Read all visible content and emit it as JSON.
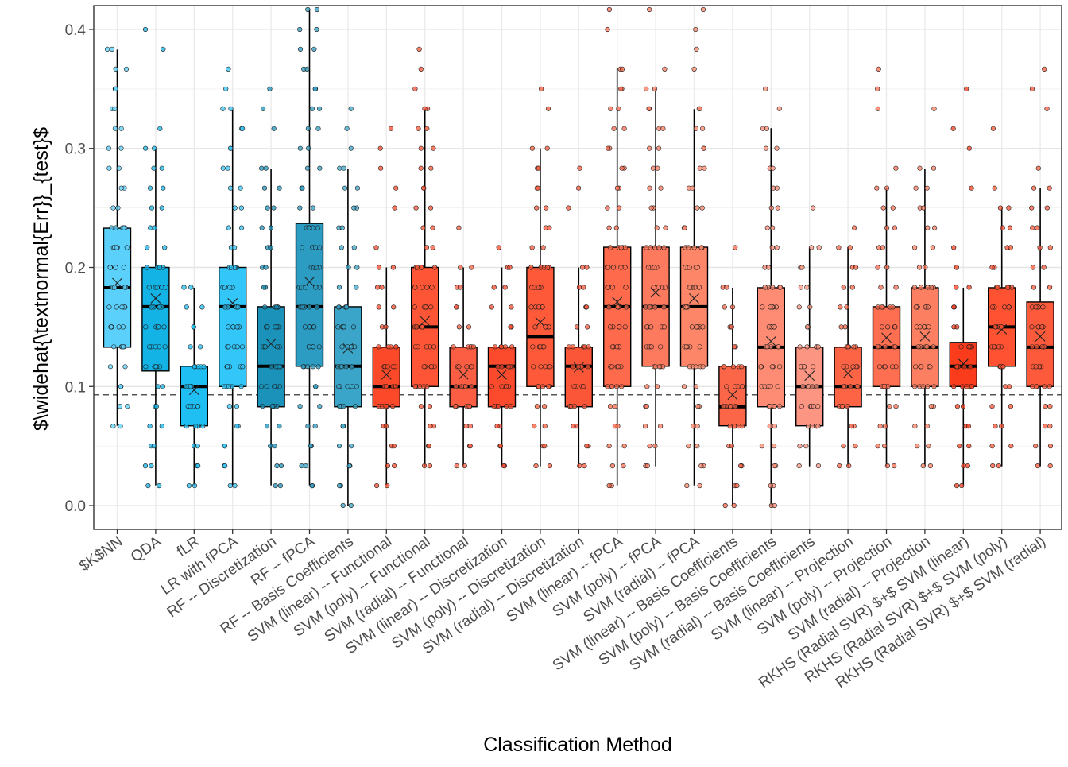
{
  "chart_data": {
    "type": "box",
    "title": "",
    "xlabel": "Classification Method",
    "ylabel": "$\\widehat{\\textnormal{Err}}_{test}$",
    "ylim": [
      -0.02,
      0.42
    ],
    "yticks": [
      "0.0",
      "0.1",
      "0.2",
      "0.3",
      "0.4"
    ],
    "grid": true,
    "reference_line": 0.093,
    "legend": "none",
    "categories": [
      "$K$NN",
      "QDA",
      "fLR",
      "LR with fPCA",
      "RF -- Discretization",
      "RF -- fPCA",
      "RF -- Basis Coefficients",
      "SVM (linear) -- Functional",
      "SVM (poly) -- Functional",
      "SVM (radial) -- Functional",
      "SVM (linear) -- Discretization",
      "SVM (poly) -- Discretization",
      "SVM (radial) -- Discretization",
      "SVM (linear) -- fPCA",
      "SVM (poly) -- fPCA",
      "SVM (radial) -- fPCA",
      "SVM (linear) -- Basis Coefficients",
      "SVM (poly) -- Basis Coefficients",
      "SVM (radial) -- Basis Coefficients",
      "SVM (linear) -- Projection",
      "SVM (poly) -- Projection",
      "SVM (radial) -- Projection",
      "RKHS (Radial SVR) $+$ SVM (linear)",
      "RKHS (Radial SVR) $+$ SVM (poly)",
      "RKHS (Radial SVR) $+$ SVM (radial)"
    ],
    "boxes": [
      {
        "min": 0.067,
        "q1": 0.133,
        "median": 0.183,
        "q3": 0.233,
        "max": 0.383,
        "mean": 0.187,
        "fill": "#5bd0fa",
        "pmin": 0.067,
        "pmax": 0.383
      },
      {
        "min": 0.017,
        "q1": 0.113,
        "median": 0.167,
        "q3": 0.2,
        "max": 0.3,
        "mean": 0.174,
        "fill": "#14b3e6",
        "pmin": 0.017,
        "pmax": 0.4
      },
      {
        "min": 0.017,
        "q1": 0.067,
        "median": 0.1,
        "q3": 0.117,
        "max": 0.183,
        "mean": 0.097,
        "fill": "#1fbff3",
        "pmin": 0.017,
        "pmax": 0.183
      },
      {
        "min": 0.017,
        "q1": 0.1,
        "median": 0.167,
        "q3": 0.2,
        "max": 0.333,
        "mean": 0.17,
        "fill": "#33c6f8",
        "pmin": 0.017,
        "pmax": 0.367
      },
      {
        "min": 0.017,
        "q1": 0.083,
        "median": 0.117,
        "q3": 0.167,
        "max": 0.283,
        "mean": 0.136,
        "fill": "#1a92b9",
        "pmin": 0.017,
        "pmax": 0.35
      },
      {
        "min": 0.017,
        "q1": 0.117,
        "median": 0.167,
        "q3": 0.237,
        "max": 0.417,
        "mean": 0.188,
        "fill": "#2c9cc2",
        "pmin": 0.017,
        "pmax": 0.417
      },
      {
        "min": 0.0,
        "q1": 0.083,
        "median": 0.117,
        "q3": 0.167,
        "max": 0.283,
        "mean": 0.132,
        "fill": "#3aa5c8",
        "pmin": 0.0,
        "pmax": 0.333
      },
      {
        "min": 0.017,
        "q1": 0.083,
        "median": 0.1,
        "q3": 0.133,
        "max": 0.2,
        "mean": 0.11,
        "fill": "#fb492a",
        "pmin": 0.017,
        "pmax": 0.317
      },
      {
        "min": 0.033,
        "q1": 0.1,
        "median": 0.15,
        "q3": 0.2,
        "max": 0.333,
        "mean": 0.155,
        "fill": "#fe5536",
        "pmin": 0.033,
        "pmax": 0.383
      },
      {
        "min": 0.033,
        "q1": 0.083,
        "median": 0.1,
        "q3": 0.133,
        "max": 0.2,
        "mean": 0.11,
        "fill": "#fb5e42",
        "pmin": 0.033,
        "pmax": 0.233
      },
      {
        "min": 0.033,
        "q1": 0.083,
        "median": 0.117,
        "q3": 0.133,
        "max": 0.2,
        "mean": 0.11,
        "fill": "#fc4a2c",
        "pmin": 0.033,
        "pmax": 0.217
      },
      {
        "min": 0.033,
        "q1": 0.1,
        "median": 0.142,
        "q3": 0.2,
        "max": 0.3,
        "mean": 0.154,
        "fill": "#fe5a3a",
        "pmin": 0.033,
        "pmax": 0.35
      },
      {
        "min": 0.033,
        "q1": 0.083,
        "median": 0.117,
        "q3": 0.133,
        "max": 0.2,
        "mean": 0.116,
        "fill": "#fb5638",
        "pmin": 0.033,
        "pmax": 0.283
      },
      {
        "min": 0.017,
        "q1": 0.1,
        "median": 0.167,
        "q3": 0.217,
        "max": 0.367,
        "mean": 0.171,
        "fill": "#fd6a4c",
        "pmin": 0.017,
        "pmax": 0.417
      },
      {
        "min": 0.033,
        "q1": 0.117,
        "median": 0.167,
        "q3": 0.217,
        "max": 0.35,
        "mean": 0.179,
        "fill": "#fe7a5f",
        "pmin": 0.033,
        "pmax": 0.417
      },
      {
        "min": 0.017,
        "q1": 0.117,
        "median": 0.167,
        "q3": 0.217,
        "max": 0.333,
        "mean": 0.174,
        "fill": "#fd8668",
        "pmin": 0.017,
        "pmax": 0.417
      },
      {
        "min": 0.0,
        "q1": 0.067,
        "median": 0.083,
        "q3": 0.117,
        "max": 0.183,
        "mean": 0.093,
        "fill": "#fb6548",
        "pmin": 0.0,
        "pmax": 0.217
      },
      {
        "min": 0.0,
        "q1": 0.083,
        "median": 0.133,
        "q3": 0.183,
        "max": 0.317,
        "mean": 0.138,
        "fill": "#fe8b74",
        "pmin": 0.0,
        "pmax": 0.35
      },
      {
        "min": 0.033,
        "q1": 0.067,
        "median": 0.1,
        "q3": 0.133,
        "max": 0.217,
        "mean": 0.109,
        "fill": "#fc9582",
        "pmin": 0.033,
        "pmax": 0.25
      },
      {
        "min": 0.033,
        "q1": 0.083,
        "median": 0.1,
        "q3": 0.133,
        "max": 0.217,
        "mean": 0.111,
        "fill": "#fd6446",
        "pmin": 0.033,
        "pmax": 0.233
      },
      {
        "min": 0.033,
        "q1": 0.1,
        "median": 0.133,
        "q3": 0.167,
        "max": 0.267,
        "mean": 0.141,
        "fill": "#fe6e51",
        "pmin": 0.033,
        "pmax": 0.367
      },
      {
        "min": 0.033,
        "q1": 0.1,
        "median": 0.133,
        "q3": 0.183,
        "max": 0.283,
        "mean": 0.142,
        "fill": "#fd7f62",
        "pmin": 0.033,
        "pmax": 0.333
      },
      {
        "min": 0.017,
        "q1": 0.1,
        "median": 0.117,
        "q3": 0.137,
        "max": 0.183,
        "mean": 0.119,
        "fill": "#fb3c1c",
        "pmin": 0.017,
        "pmax": 0.35
      },
      {
        "min": 0.033,
        "q1": 0.117,
        "median": 0.15,
        "q3": 0.183,
        "max": 0.25,
        "mean": 0.148,
        "fill": "#fe5232",
        "pmin": 0.033,
        "pmax": 0.317
      },
      {
        "min": 0.033,
        "q1": 0.1,
        "median": 0.133,
        "q3": 0.171,
        "max": 0.267,
        "mean": 0.142,
        "fill": "#fc5a3b",
        "pmin": 0.033,
        "pmax": 0.367
      }
    ]
  }
}
